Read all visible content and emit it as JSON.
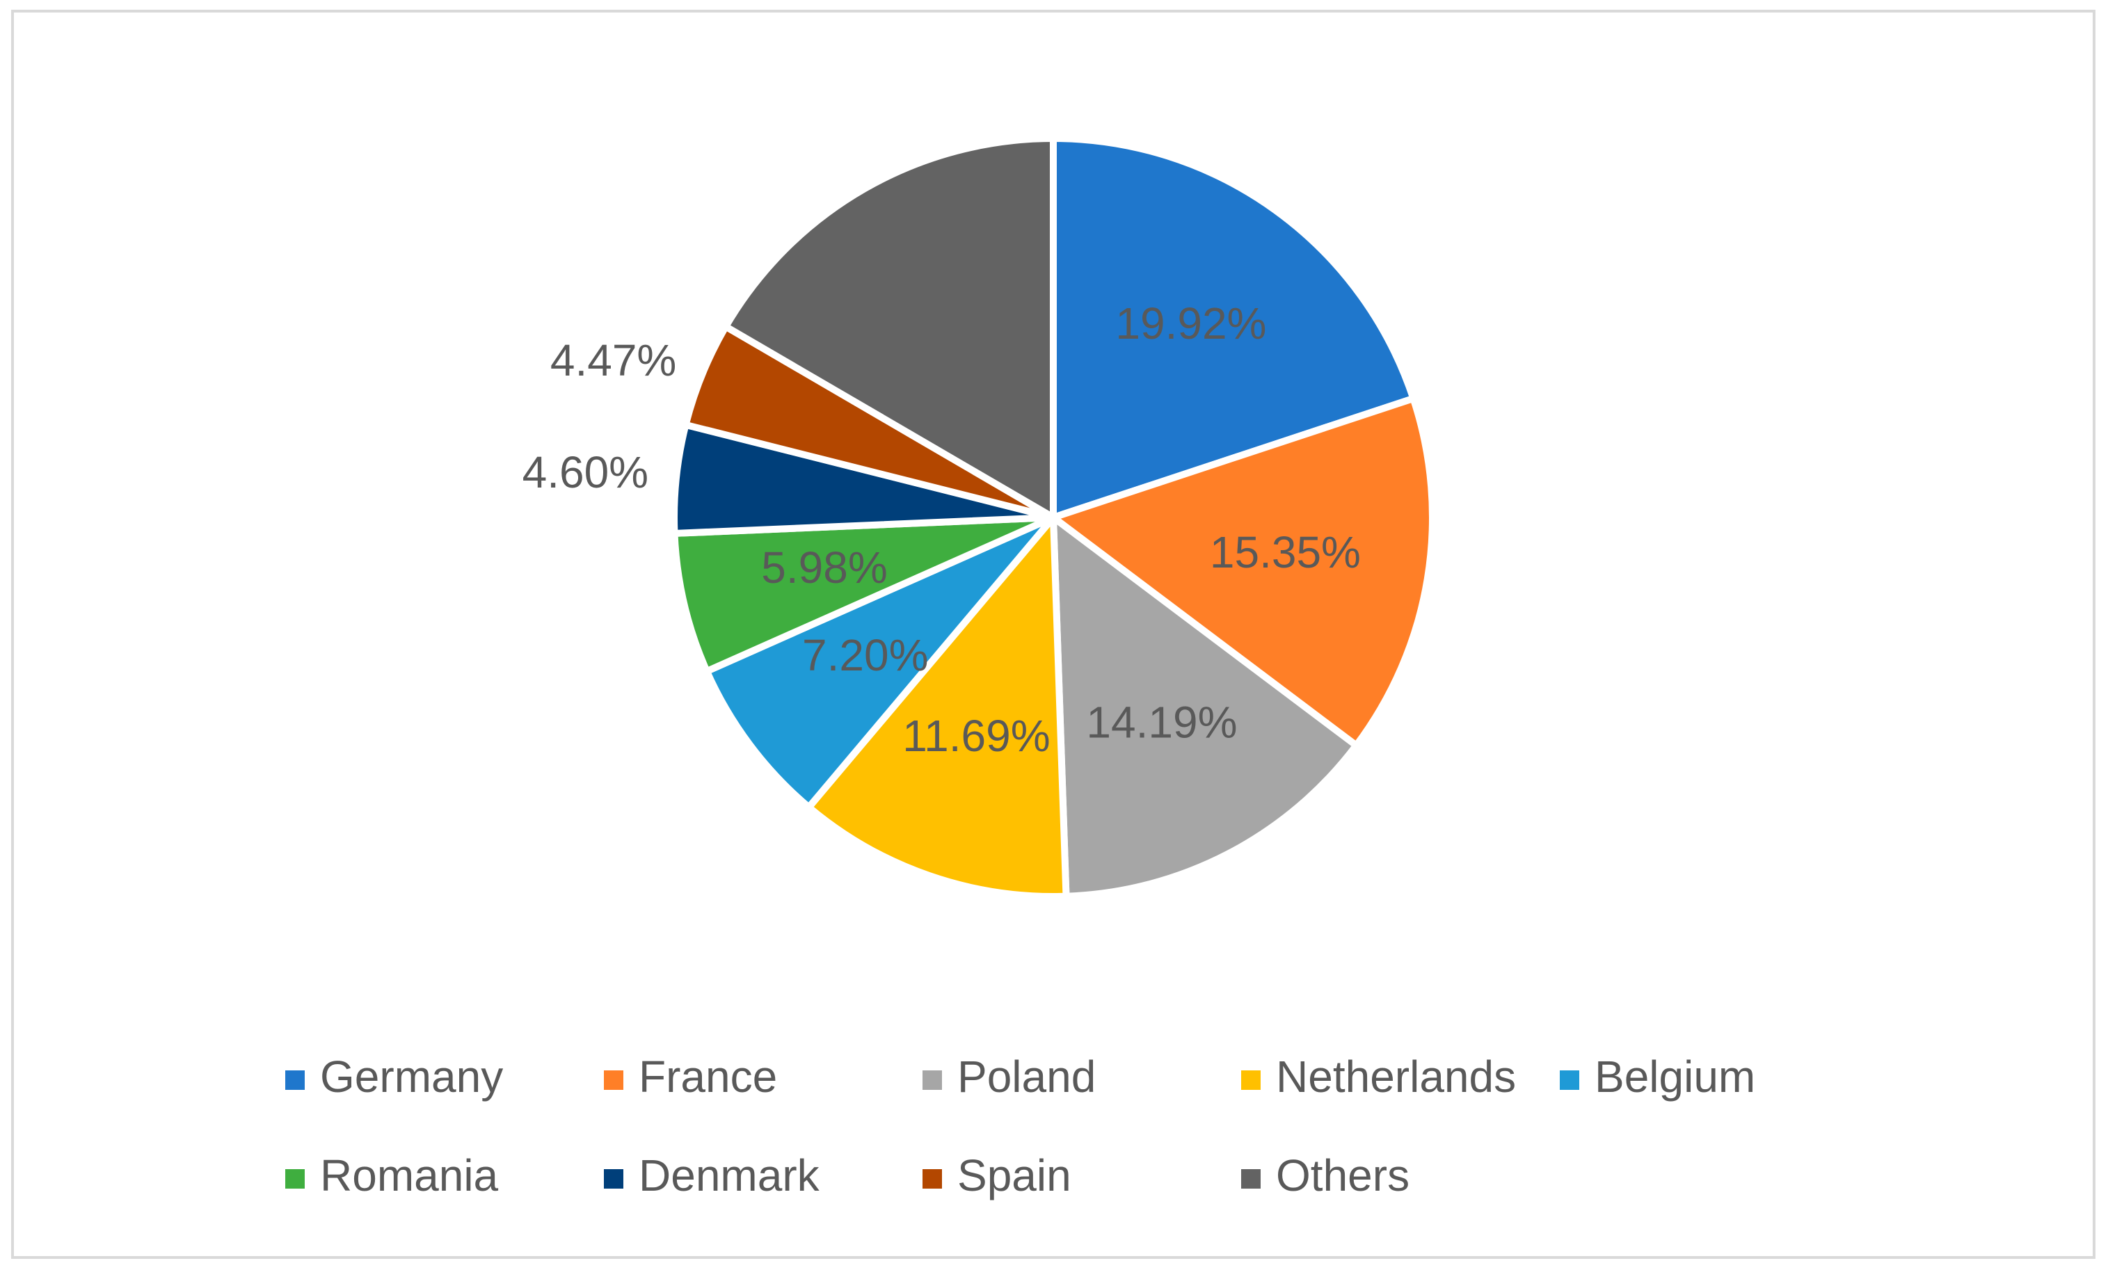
{
  "chart_data": {
    "type": "pie",
    "title": "",
    "categories": [
      "Germany",
      "France",
      "Poland",
      "Netherlands",
      "Belgium",
      "Romania",
      "Denmark",
      "Spain",
      "Others"
    ],
    "values": [
      19.92,
      15.35,
      14.19,
      11.69,
      7.2,
      5.98,
      4.6,
      4.47,
      16.6
    ],
    "data_labels": [
      "19.92%",
      "15.35%",
      "14.19%",
      "11.69%",
      "7.20%",
      "5.98%",
      "4.60%",
      "4.47%",
      ""
    ],
    "colors": [
      "#1f77cc",
      "#ff7f27",
      "#a6a6a6",
      "#ffc000",
      "#1f9ad6",
      "#3fae3f",
      "#003f7a",
      "#b34700",
      "#636363"
    ],
    "start_angle_deg": 0,
    "direction": "clockwise",
    "legend": {
      "position": "bottom",
      "columns": 5
    }
  }
}
